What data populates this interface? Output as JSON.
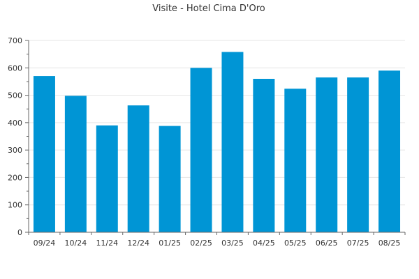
{
  "chart_data": {
    "type": "bar",
    "title": "Visite - Hotel Cima D'Oro",
    "xlabel": "",
    "ylabel": "",
    "categories": [
      "09/24",
      "10/24",
      "11/24",
      "12/24",
      "01/25",
      "02/25",
      "03/25",
      "04/25",
      "05/25",
      "06/25",
      "07/25",
      "08/25"
    ],
    "values": [
      570,
      498,
      390,
      463,
      388,
      600,
      658,
      560,
      524,
      565,
      565,
      590
    ],
    "ylim": [
      0,
      700
    ],
    "yticks": [
      0,
      100,
      200,
      300,
      400,
      500,
      600,
      700
    ],
    "grid": true,
    "legend": "none",
    "bar_color": "#0095d5"
  }
}
